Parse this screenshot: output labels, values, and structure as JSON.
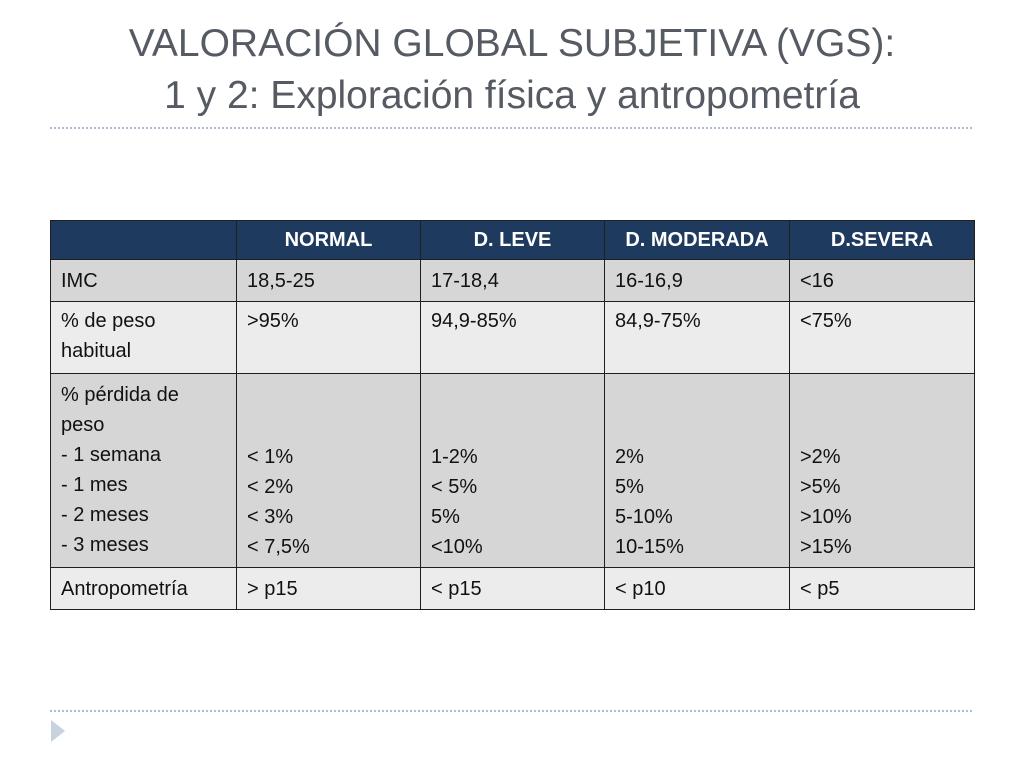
{
  "slide": {
    "title_line1": "VALORACIÓN GLOBAL SUBJETIVA (VGS):",
    "title_line2": "1 y 2: Exploración física y antropometría"
  },
  "table": {
    "headers": [
      "",
      "NORMAL",
      "D. LEVE",
      "D. MODERADA",
      "D.SEVERA"
    ],
    "rows": [
      {
        "label": [
          "IMC"
        ],
        "cells": [
          [
            "18,5-25"
          ],
          [
            "17-18,4"
          ],
          [
            "16-16,9"
          ],
          [
            "<16"
          ]
        ]
      },
      {
        "label": [
          "% de peso",
          "habitual"
        ],
        "cells": [
          [
            ">95%"
          ],
          [
            "94,9-85%"
          ],
          [
            "84,9-75%"
          ],
          [
            "<75%"
          ]
        ]
      },
      {
        "label": [
          "% pérdida de",
          "peso",
          "- 1 semana",
          "- 1 mes",
          "- 2 meses",
          "- 3 meses"
        ],
        "cells": [
          [
            "< 1%",
            "< 2%",
            "< 3%",
            "< 7,5%"
          ],
          [
            "1-2%",
            "< 5%",
            "5%",
            "<10%"
          ],
          [
            "2%",
            "5%",
            "5-10%",
            "10-15%"
          ],
          [
            ">2%",
            ">5%",
            ">10%",
            ">15%"
          ]
        ]
      },
      {
        "label": [
          "Antropometría"
        ],
        "cells": [
          [
            "> p15"
          ],
          [
            "< p15"
          ],
          [
            "< p10"
          ],
          [
            "< p5"
          ]
        ]
      }
    ]
  },
  "colors": {
    "header_bg": "#1e3a5f",
    "row_dark": "#d6d6d6",
    "row_light": "#ececec",
    "title_text": "#555a63",
    "divider": "#a9bfd2"
  },
  "icons": {
    "bullet": "triangle-bullet-icon"
  }
}
